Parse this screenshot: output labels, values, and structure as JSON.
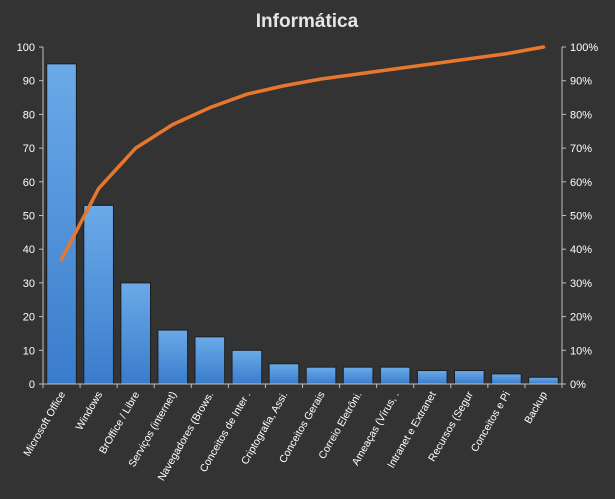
{
  "chart_data": {
    "type": "bar",
    "title": "Informática",
    "xlabel": "",
    "ylabel": "",
    "ylim": [
      0,
      100
    ],
    "y_ticks": [
      0,
      10,
      20,
      30,
      40,
      50,
      60,
      70,
      80,
      90,
      100
    ],
    "y2lim": [
      0,
      100
    ],
    "y2_tick_labels": [
      "0%",
      "10%",
      "20%",
      "30%",
      "40%",
      "50%",
      "60%",
      "70%",
      "80%",
      "90%",
      "100%"
    ],
    "grid": false,
    "legend": "none",
    "categories": [
      "Microsoft Office",
      "Windows",
      "BrOffice / Libre",
      "Serviços (internet)",
      "Navegadores (Brows.",
      "Conceitos de Inter .",
      "Criptografia, Assi.",
      "Conceitos Gerais",
      "Correio Eletrôni.",
      "Ameaças (Vírus, .",
      "Intranet e Extranet",
      "Recursos (Segur",
      "Conceitos e Pi",
      "Backup"
    ],
    "series": [
      {
        "type": "bar",
        "axis": "left",
        "color": "#4a8fd8",
        "values": [
          95,
          53,
          30,
          16,
          14,
          10,
          6,
          5,
          5,
          5,
          4,
          4,
          3,
          2
        ]
      },
      {
        "type": "line",
        "axis": "right",
        "unit": "%",
        "color": "#e8772e",
        "values": [
          37,
          58,
          70,
          77,
          82,
          86,
          88.5,
          90.5,
          92,
          93.5,
          95,
          96.5,
          98,
          100
        ]
      }
    ]
  }
}
